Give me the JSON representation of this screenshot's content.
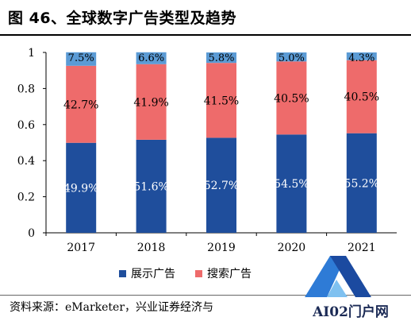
{
  "title": "图 46、全球数字广告类型及趋势",
  "source_text": "资料来源：eMarketer，兴业证券经济与",
  "watermark": {
    "text": "AI02门户网",
    "color": "#1b2a55"
  },
  "chart_data": {
    "type": "bar",
    "stacked": true,
    "categories": [
      "2017",
      "2018",
      "2019",
      "2020",
      "2021"
    ],
    "series": [
      {
        "name": "展示广告",
        "color": "#1f4e9c",
        "values": [
          0.499,
          0.516,
          0.527,
          0.545,
          0.552
        ],
        "labels": [
          "49.9%",
          "51.6%",
          "52.7%",
          "54.5%",
          "55.2%"
        ]
      },
      {
        "name": "搜索广告",
        "color": "#ee6b6b",
        "values": [
          0.427,
          0.419,
          0.415,
          0.405,
          0.405
        ],
        "labels": [
          "42.7%",
          "41.9%",
          "41.5%",
          "40.5%",
          "40.5%"
        ]
      },
      {
        "name": "",
        "color": "#5b9bd5",
        "values": [
          0.075,
          0.066,
          0.058,
          0.05,
          0.043
        ],
        "labels": [
          "7.5%",
          "6.6%",
          "5.8%",
          "5.0%",
          "4.3%"
        ]
      }
    ],
    "legend_series": [
      "展示广告",
      "搜索广告"
    ],
    "yticks": [
      "0",
      "0.2",
      "0.4",
      "0.6",
      "0.8",
      "1"
    ],
    "ylim": [
      0,
      1
    ],
    "legend_position": "bottom",
    "grid": false
  }
}
